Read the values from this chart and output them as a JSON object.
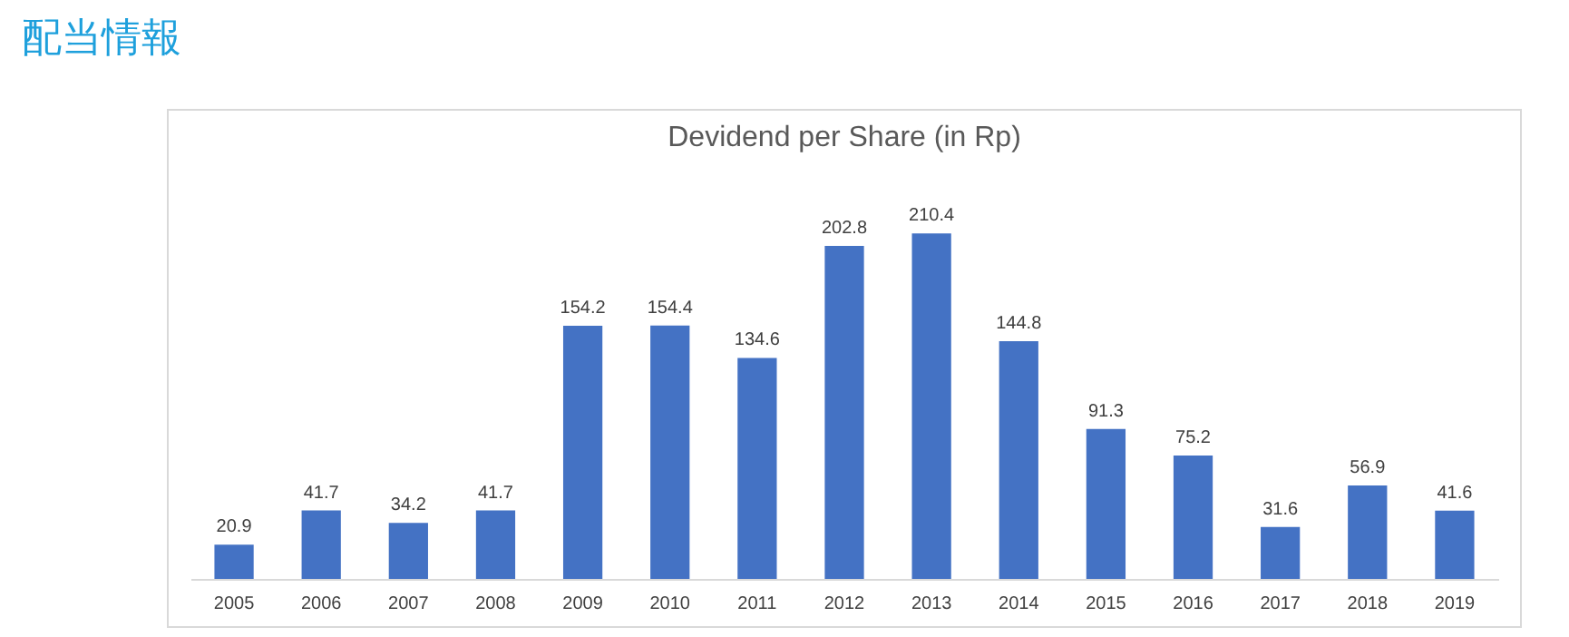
{
  "chart_data": {
    "type": "bar",
    "title": "配当情報",
    "subtitle": "Devidend per Share (in Rp)",
    "categories": [
      "2005",
      "2006",
      "2007",
      "2008",
      "2009",
      "2010",
      "2011",
      "2012",
      "2013",
      "2014",
      "2015",
      "2016",
      "2017",
      "2018",
      "2019"
    ],
    "values": [
      20.9,
      41.7,
      34.2,
      41.7,
      154.2,
      154.4,
      134.6,
      202.8,
      210.4,
      144.8,
      91.3,
      75.2,
      31.6,
      56.9,
      41.6
    ],
    "color": "#4472c4",
    "data_labels": true,
    "grid": false
  }
}
